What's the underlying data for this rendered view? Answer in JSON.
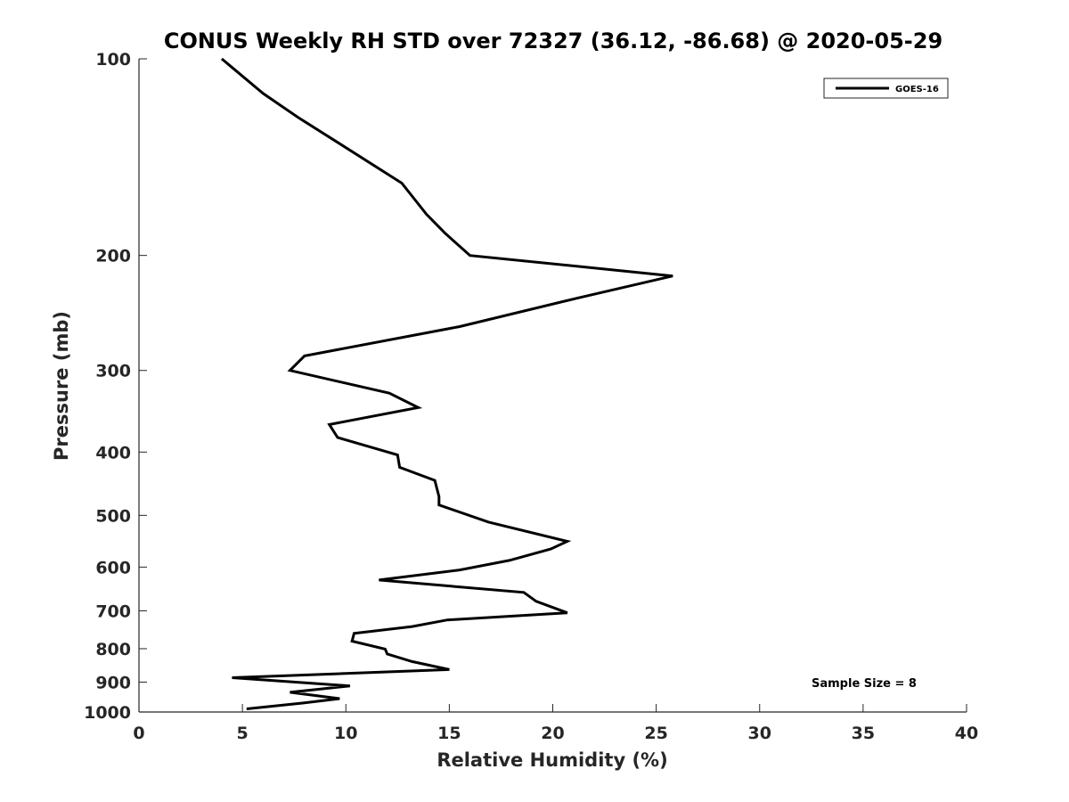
{
  "chart_data": {
    "type": "line",
    "title": "CONUS Weekly RH STD over 72327 (36.12, -86.68) @ 2020-05-29",
    "xlabel": "Relative Humidity (%)",
    "ylabel": "Pressure (mb)",
    "xlim": [
      0,
      40
    ],
    "ylim": [
      100,
      1000
    ],
    "y_scale": "log",
    "y_reversed": true,
    "grid": false,
    "legend_position": "top-right",
    "x_ticks": [
      0,
      5,
      10,
      15,
      20,
      25,
      30,
      35,
      40
    ],
    "y_ticks": [
      100,
      200,
      300,
      400,
      500,
      600,
      700,
      800,
      900,
      1000
    ],
    "series": [
      {
        "name": "GOES-16",
        "color": "#000000",
        "x": [
          4.0,
          6.0,
          7.7,
          9.4,
          12.7,
          13.9,
          14.8,
          16.0,
          25.8,
          21.3,
          15.5,
          8.0,
          7.3,
          12.1,
          13.5,
          9.2,
          9.6,
          12.5,
          12.6,
          14.3,
          14.5,
          14.5,
          16.9,
          20.7,
          19.9,
          17.9,
          15.5,
          11.6,
          18.6,
          19.2,
          20.7,
          14.9,
          13.2,
          10.4,
          10.3,
          11.9,
          12.0,
          13.2,
          15.0,
          4.5,
          10.2,
          7.3,
          9.7,
          7.9,
          5.2
        ],
        "y": [
          100,
          113,
          123,
          133,
          155,
          173,
          185,
          200,
          215,
          232,
          257,
          285,
          300,
          325,
          342,
          363,
          380,
          404,
          422,
          442,
          468,
          482,
          512,
          548,
          563,
          586,
          606,
          628,
          656,
          677,
          705,
          723,
          740,
          758,
          779,
          801,
          815,
          837,
          861,
          886,
          912,
          933,
          954,
          969,
          989
        ]
      }
    ],
    "legend": [
      "GOES-16"
    ],
    "annotations": [
      "Sample Size = 8"
    ]
  }
}
